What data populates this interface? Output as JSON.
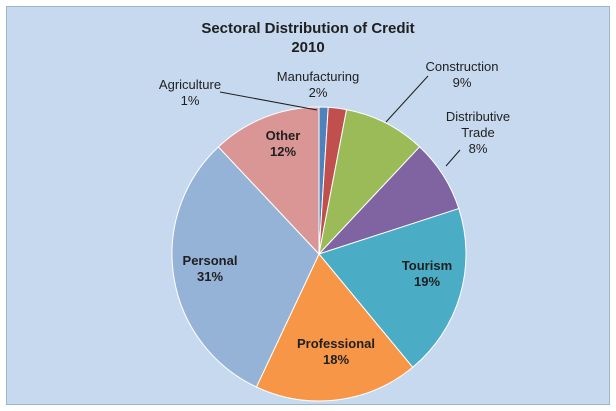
{
  "chart_data": {
    "type": "pie",
    "title": "Sectoral Distribution of Credit",
    "subtitle": "2010",
    "slices": [
      {
        "label": "Agriculture",
        "value": 1,
        "value_label": "1%",
        "color": "#4f81bd"
      },
      {
        "label": "Manufacturing",
        "value": 2,
        "value_label": "2%",
        "color": "#c0504d"
      },
      {
        "label": "Construction",
        "value": 9,
        "value_label": "9%",
        "color": "#9bbb59"
      },
      {
        "label": "Distributive Trade",
        "value": 8,
        "value_label": "8%",
        "color": "#8064a2"
      },
      {
        "label": "Tourism",
        "value": 19,
        "value_label": "19%",
        "color": "#4bacc6"
      },
      {
        "label": "Professional",
        "value": 18,
        "value_label": "18%",
        "color": "#f79646"
      },
      {
        "label": "Personal",
        "value": 31,
        "value_label": "31%",
        "color": "#95b3d7"
      },
      {
        "label": "Other",
        "value": 12,
        "value_label": "12%",
        "color": "#d99694"
      }
    ]
  }
}
